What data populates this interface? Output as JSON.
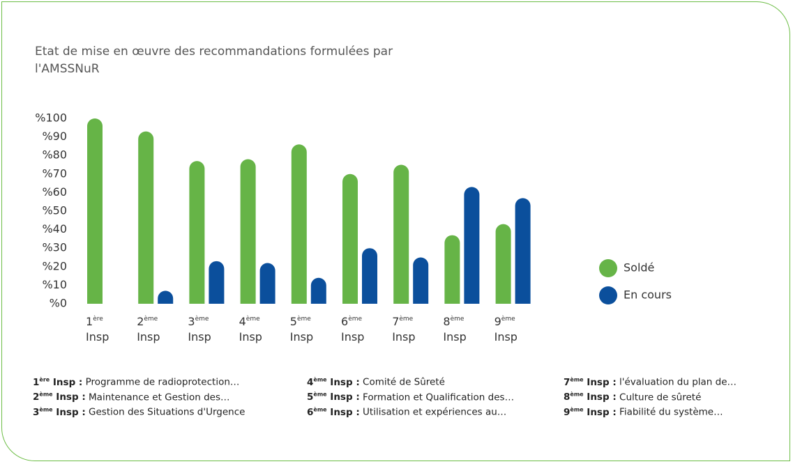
{
  "chart_data": {
    "type": "bar",
    "title": "Etat de mise en œuvre des recommandations formulées par l'AMSSNuR",
    "categories": [
      "1ère Insp",
      "2ème Insp",
      "3ème Insp",
      "4ème Insp",
      "5ème Insp",
      "6ème Insp",
      "7ème Insp",
      "8ème Insp",
      "9ème Insp"
    ],
    "series": [
      {
        "name": "Soldé",
        "color": "#66b447",
        "values": [
          100,
          93,
          77,
          78,
          86,
          70,
          75,
          37,
          43
        ]
      },
      {
        "name": "En cours",
        "color": "#0b4f9c",
        "values": [
          0,
          7,
          23,
          22,
          14,
          30,
          25,
          63,
          57
        ]
      }
    ],
    "ylim": [
      0,
      100
    ],
    "yticks": [
      {
        "value": 0,
        "label": "%0"
      },
      {
        "value": 10,
        "label": "%10"
      },
      {
        "value": 20,
        "label": "%20"
      },
      {
        "value": 30,
        "label": "%30"
      },
      {
        "value": 40,
        "label": "%40"
      },
      {
        "value": 50,
        "label": "%50"
      },
      {
        "value": 60,
        "label": "%60"
      },
      {
        "value": 70,
        "label": "%70"
      },
      {
        "value": 80,
        "label": "%80"
      },
      {
        "value": 90,
        "label": "%90"
      },
      {
        "value": 100,
        "label": "%100"
      }
    ],
    "legend": "right",
    "footnotes": [
      {
        "key": "1ère Insp :",
        "text": "Programme de radioprotection…"
      },
      {
        "key": "2ème Insp :",
        "text": "Maintenance et Gestion des…"
      },
      {
        "key": "3ème Insp :",
        "text": "Gestion des Situations d'Urgence"
      },
      {
        "key": "4ème Insp :",
        "text": "Comité de Sûreté"
      },
      {
        "key": "5ème Insp :",
        "text": "Formation et Qualification des…"
      },
      {
        "key": "6ème Insp :",
        "text": "Utilisation et expériences au…"
      },
      {
        "key": "7ème Insp :",
        "text": "l'évaluation du plan de…"
      },
      {
        "key": "8ème Insp :",
        "text": "Culture de sûreté"
      },
      {
        "key": "9ème Insp :",
        "text": "Fiabilité du système…"
      }
    ]
  }
}
